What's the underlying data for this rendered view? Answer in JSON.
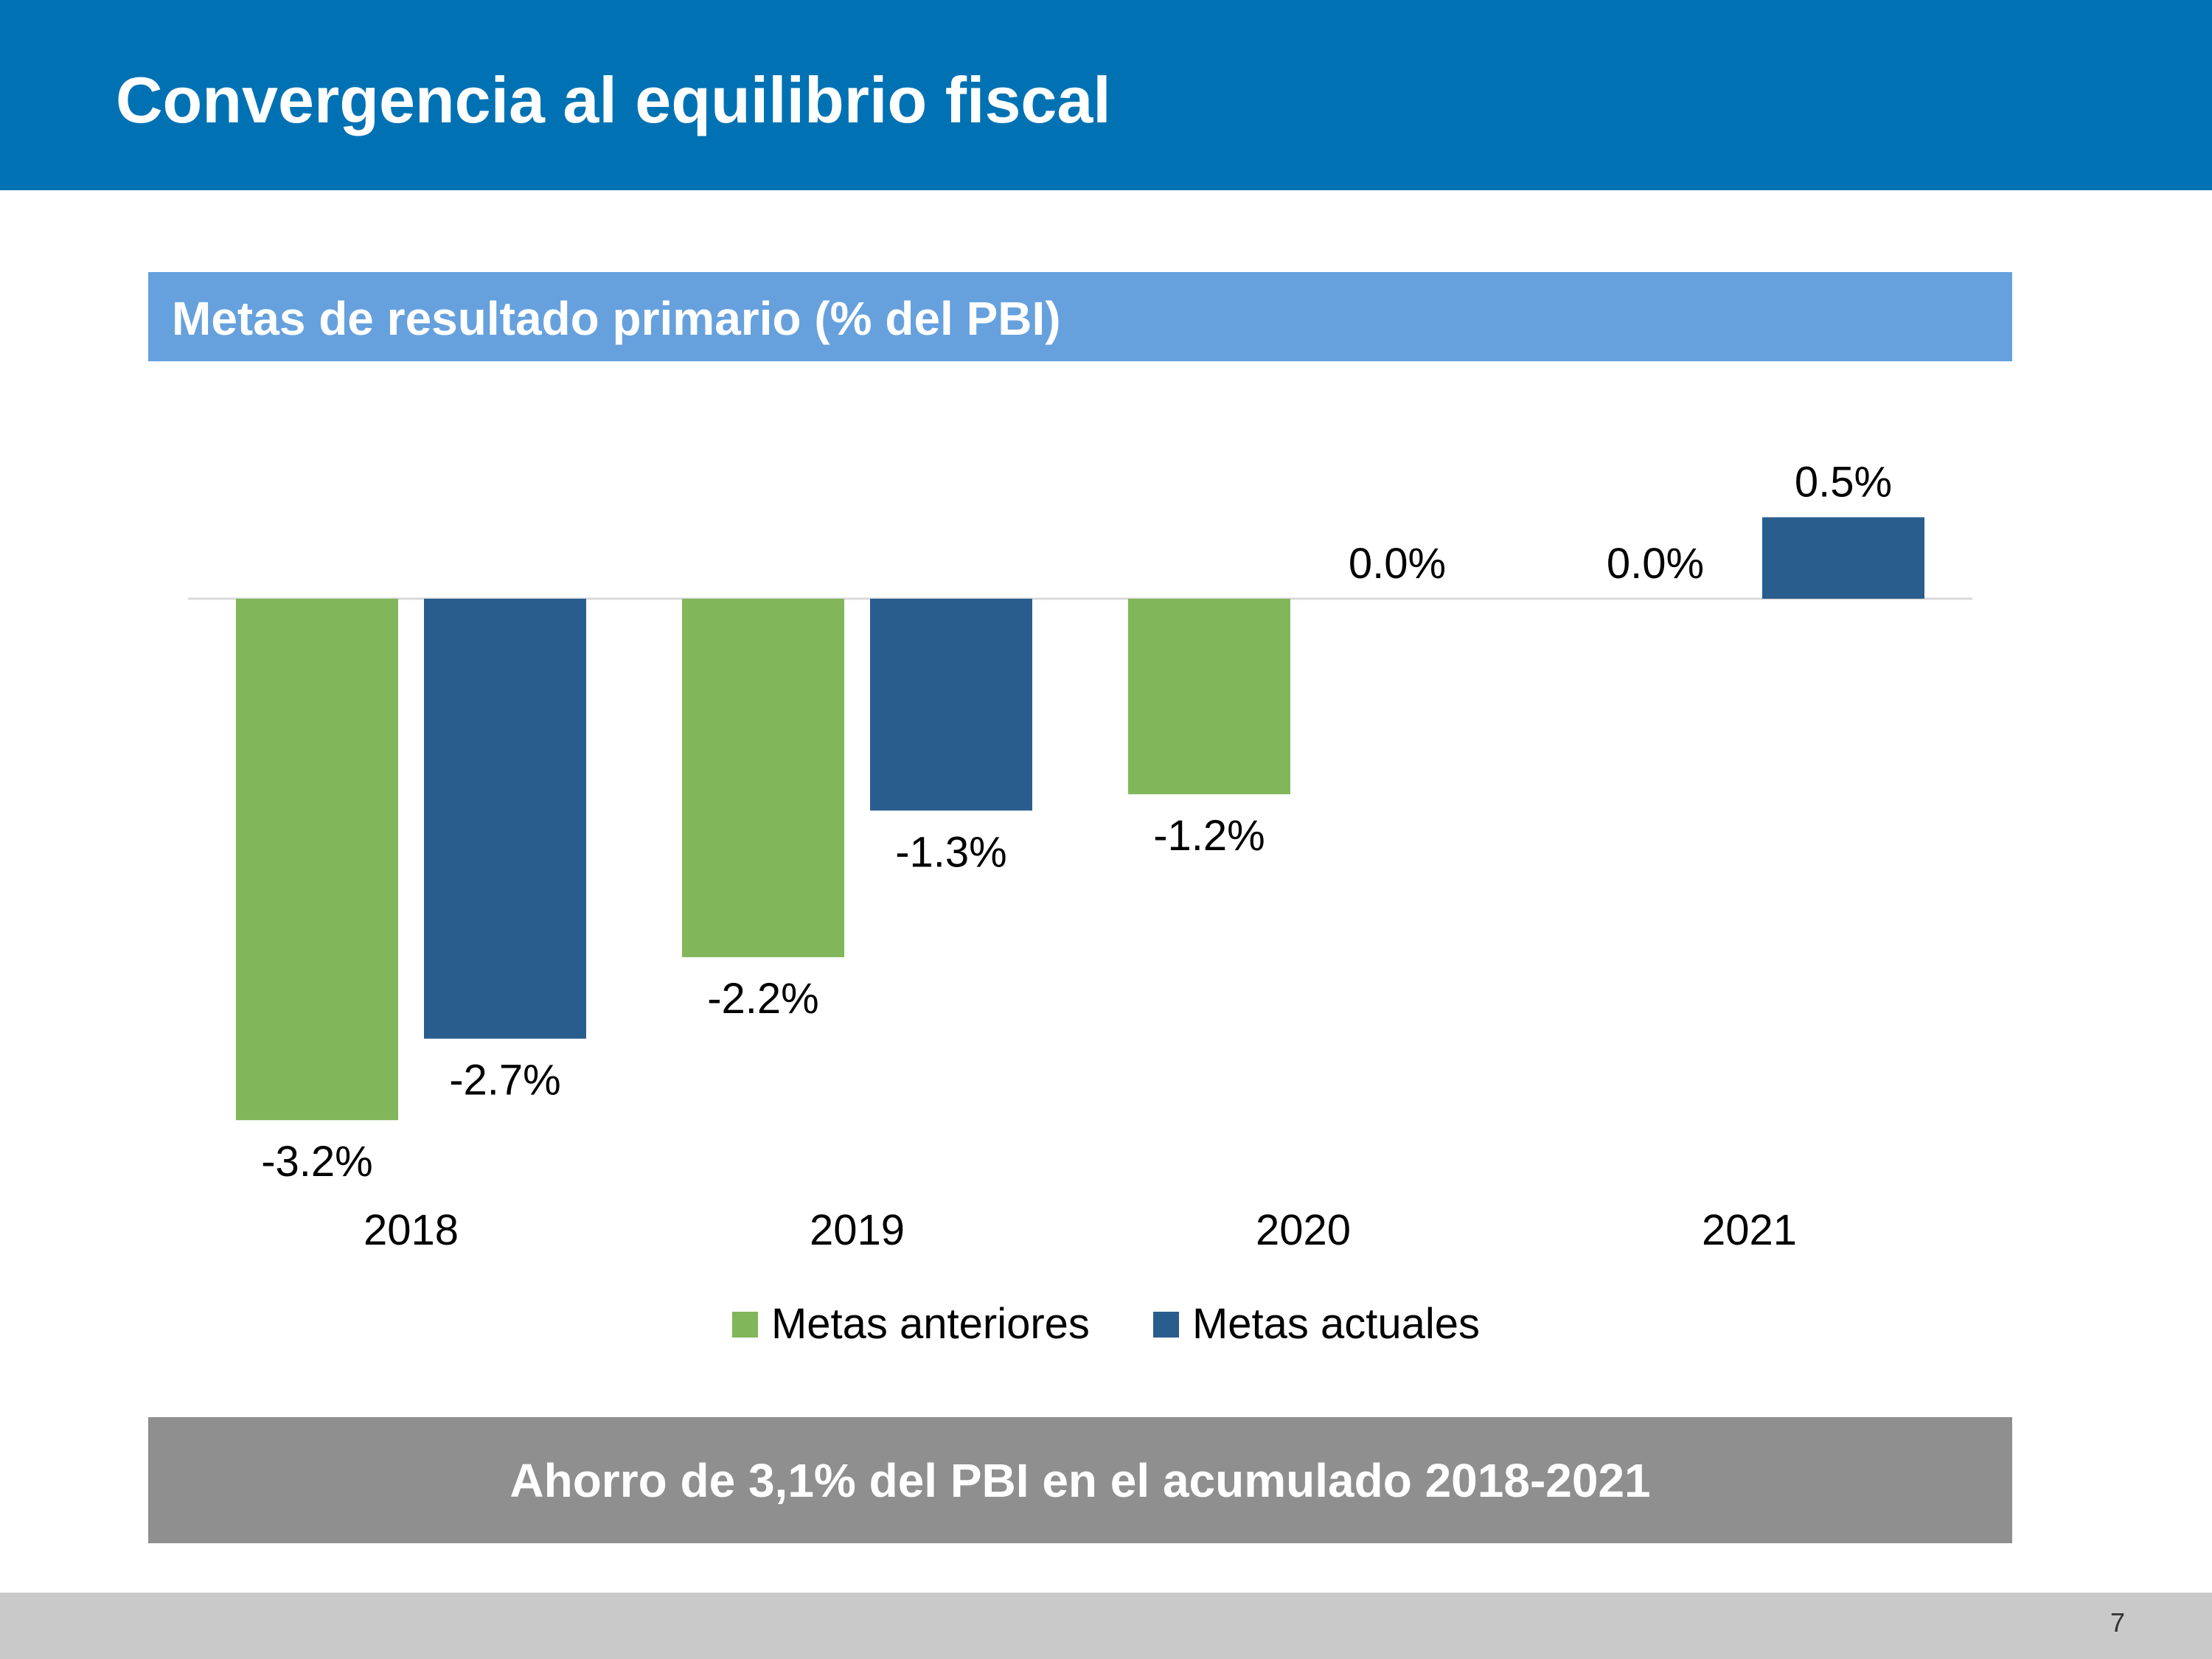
{
  "header": {
    "title": "Convergencia al equilibrio fiscal"
  },
  "chart_section": {
    "subtitle": "Metas de resultado primario (% del PBI)"
  },
  "chart_data": {
    "type": "bar",
    "title": "Metas de resultado primario (% del PBI)",
    "categories": [
      "2018",
      "2019",
      "2020",
      "2021"
    ],
    "series": [
      {
        "name": "Metas anteriores",
        "color": "#82b65a",
        "values": [
          -3.2,
          -2.2,
          -1.2,
          0.0
        ],
        "labels": [
          "-3.2%",
          "-2.2%",
          "-1.2%",
          "0.0%"
        ]
      },
      {
        "name": "Metas actuales",
        "color": "#295d8e",
        "values": [
          -2.7,
          -1.3,
          0.0,
          0.5
        ],
        "labels": [
          "-2.7%",
          "-1.3%",
          "0.0%",
          "0.5%"
        ]
      }
    ],
    "ylim": [
      -3.2,
      0.5
    ],
    "grid": false,
    "legend_position": "bottom"
  },
  "legend": {
    "items": [
      {
        "label": "Metas anteriores",
        "color": "#82b65a"
      },
      {
        "label": "Metas actuales",
        "color": "#295d8e"
      }
    ]
  },
  "summary": {
    "text": "Ahorro de 3,1% del PBI en el acumulado 2018-2021"
  },
  "footer": {
    "page_number": "7"
  }
}
